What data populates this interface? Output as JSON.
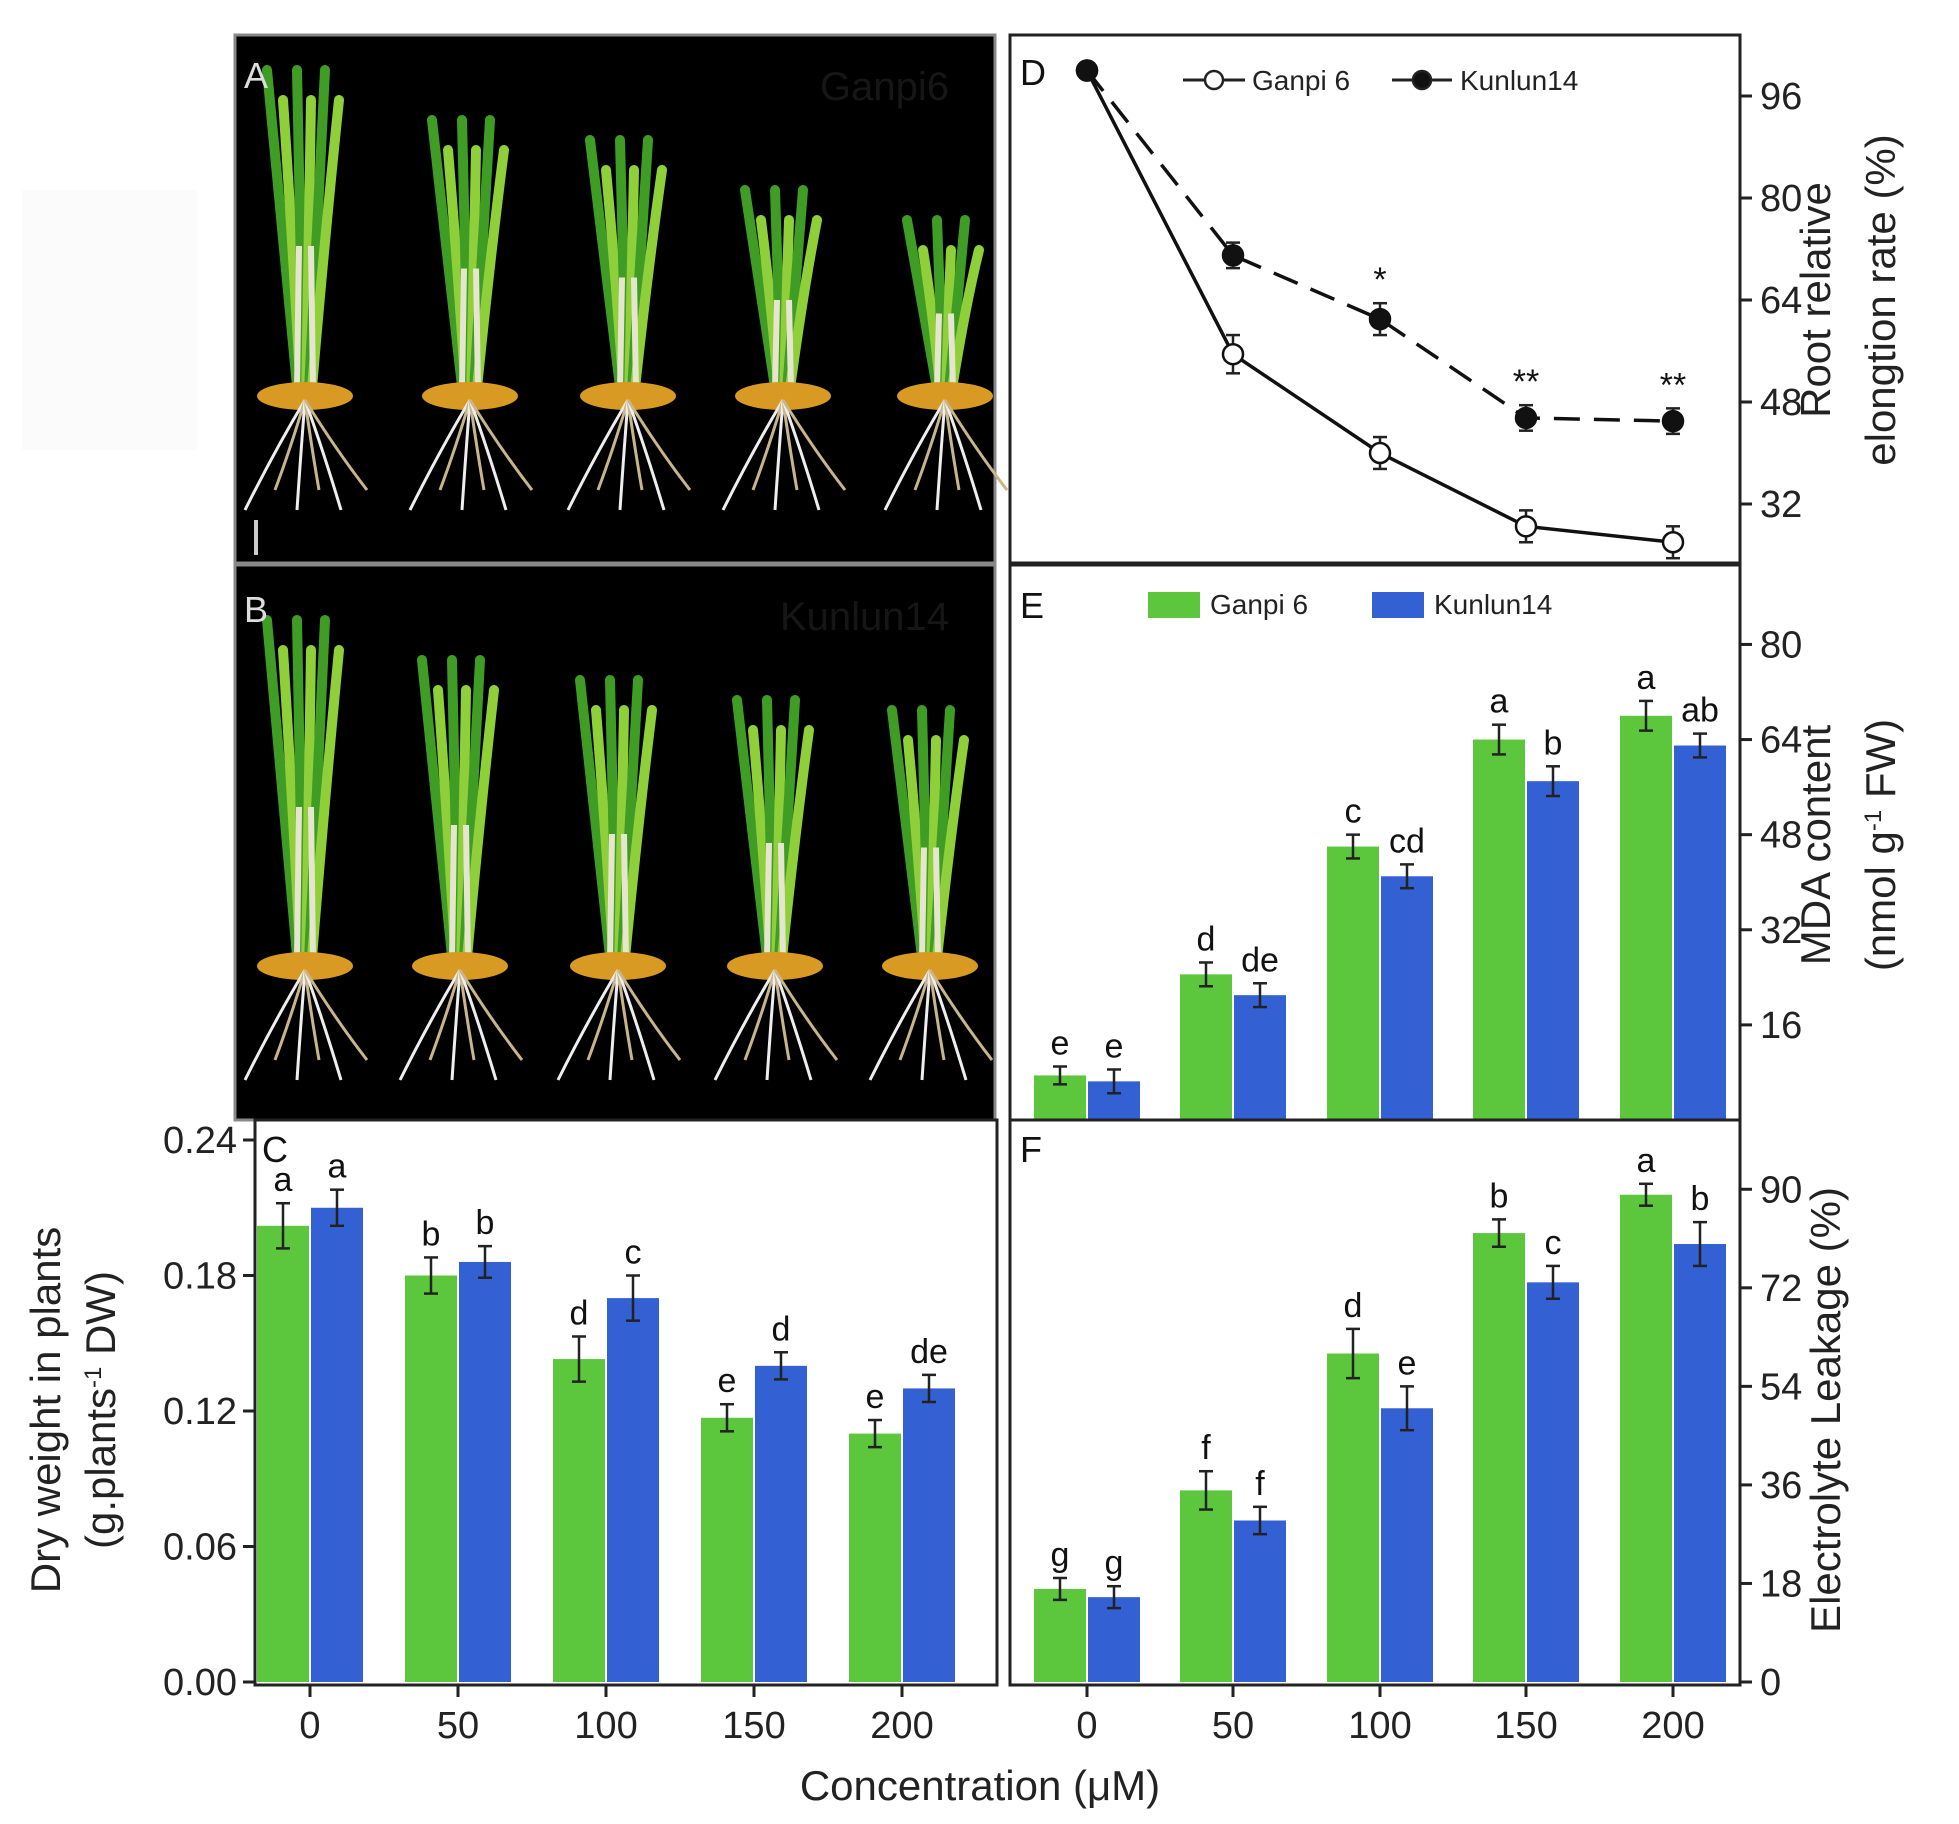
{
  "figure": {
    "xlabel": "Concentration (μM)",
    "categories": [
      "0",
      "50",
      "100",
      "150",
      "200"
    ],
    "colors": {
      "ganpi": "#5cc63d",
      "kunlun": "#3361d4",
      "axis": "#222222"
    }
  },
  "panel_a": {
    "label": "A",
    "cultivar": "Ganpi6"
  },
  "panel_b": {
    "label": "B",
    "cultivar": "Kunlun14"
  },
  "chart_data": [
    {
      "id": "C",
      "type": "bar",
      "panel_label": "C",
      "categories": [
        "0",
        "50",
        "100",
        "150",
        "200"
      ],
      "series": [
        {
          "name": "Ganpi 6",
          "values": [
            0.202,
            0.18,
            0.143,
            0.117,
            0.11
          ],
          "errors": [
            0.01,
            0.008,
            0.01,
            0.006,
            0.006
          ],
          "letters": [
            "a",
            "b",
            "d",
            "e",
            "e"
          ]
        },
        {
          "name": "Kunlun14",
          "values": [
            0.21,
            0.186,
            0.17,
            0.14,
            0.13
          ],
          "errors": [
            0.008,
            0.007,
            0.01,
            0.006,
            0.006
          ],
          "letters": [
            "a",
            "b",
            "c",
            "d",
            "de"
          ]
        }
      ],
      "ylabel_line1": "Dry weight in plants",
      "ylabel_line2": "(g.plants",
      "ylabel_sup": "-1",
      "ylabel_line2_end": " DW)",
      "ylim": [
        0,
        0.24
      ],
      "yticks": [
        "0.00",
        "0.06",
        "0.12",
        "0.18",
        "0.24"
      ],
      "ytick_values": [
        0,
        0.06,
        0.12,
        0.18,
        0.24
      ],
      "xlabel": "Concentration (μM)"
    },
    {
      "id": "D",
      "type": "line",
      "panel_label": "D",
      "x": [
        "0",
        "50",
        "100",
        "150",
        "200"
      ],
      "series": [
        {
          "name": "Ganpi 6",
          "values": [
            100,
            55.5,
            40,
            28.5,
            26
          ],
          "errors": [
            0,
            3,
            2.5,
            2.5,
            2.5
          ],
          "style": "solid-open"
        },
        {
          "name": "Kunlun14",
          "values": [
            100,
            71,
            61,
            45.5,
            45
          ],
          "errors": [
            0,
            2,
            2.5,
            2,
            2
          ],
          "style": "dashed-filled"
        }
      ],
      "significance": [
        "",
        "",
        "*",
        "**",
        "**"
      ],
      "ylabel_line1": "Root relative",
      "ylabel_line2": "elongtion rate (%)",
      "ylim": [
        24,
        104
      ],
      "yticks": [
        "32",
        "48",
        "64",
        "80",
        "96"
      ],
      "ytick_values": [
        32,
        48,
        64,
        80,
        96
      ]
    },
    {
      "id": "E",
      "type": "bar",
      "panel_label": "E",
      "categories": [
        "0",
        "50",
        "100",
        "150",
        "200"
      ],
      "series": [
        {
          "name": "Ganpi 6",
          "values": [
            7.5,
            24.5,
            46,
            64,
            68
          ],
          "errors": [
            1.5,
            2,
            2,
            2.5,
            2.5
          ],
          "letters": [
            "e",
            "d",
            "c",
            "a",
            "a"
          ]
        },
        {
          "name": "Kunlun14",
          "values": [
            6.5,
            21,
            41,
            57,
            63
          ],
          "errors": [
            2,
            2,
            2,
            2.5,
            2
          ],
          "letters": [
            "e",
            "de",
            "cd",
            "b",
            "ab"
          ]
        }
      ],
      "ylabel_line1": "MDA content",
      "ylabel_line2": "(nmol g",
      "ylabel_sup": "-1",
      "ylabel_line2_end": " FW)",
      "ylim": [
        0,
        90
      ],
      "yticks": [
        "16",
        "32",
        "48",
        "64",
        "80"
      ],
      "ytick_values": [
        16,
        32,
        48,
        64,
        80
      ]
    },
    {
      "id": "F",
      "type": "bar",
      "panel_label": "F",
      "categories": [
        "0",
        "50",
        "100",
        "150",
        "200"
      ],
      "series": [
        {
          "name": "Ganpi 6",
          "values": [
            17,
            35,
            60,
            82,
            89
          ],
          "errors": [
            2,
            3.5,
            4.5,
            2.5,
            2
          ],
          "letters": [
            "g",
            "f",
            "d",
            "b",
            "a"
          ]
        },
        {
          "name": "Kunlun14",
          "values": [
            15.5,
            29.5,
            50,
            73,
            80
          ],
          "errors": [
            2,
            2.5,
            4,
            3,
            4
          ],
          "letters": [
            "g",
            "f",
            "e",
            "c",
            "b"
          ]
        }
      ],
      "ylabel_line1": "Electrolyte Leakage (%)",
      "ylim": [
        0,
        99
      ],
      "yticks": [
        "0",
        "18",
        "36",
        "54",
        "72",
        "90"
      ],
      "ytick_values": [
        0,
        18,
        36,
        54,
        72,
        90
      ]
    }
  ]
}
